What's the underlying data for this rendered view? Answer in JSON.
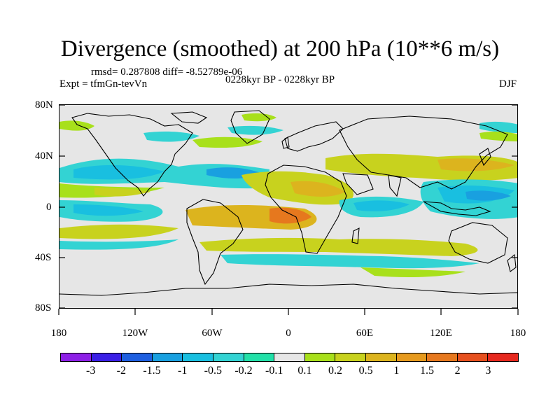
{
  "title": "Divergence (smoothed) at 200 hPa (10**6 m/s)",
  "stats": "rmsd= 0.287808 diff= -8.52789e-06",
  "experiment": "Expt = tfmGn-tevVn",
  "period": "0228kyr BP - 0228kyr BP",
  "season": "DJF",
  "lon_ticks": [
    "180",
    "120W",
    "60W",
    "0",
    "60E",
    "120E",
    "180"
  ],
  "lat_ticks": [
    "80N",
    "40N",
    "0",
    "40S",
    "80S"
  ],
  "colorbar": {
    "colors": [
      "#8d1fe6",
      "#3a1fe6",
      "#1e5fe0",
      "#19a0e0",
      "#19bfe0",
      "#33d3d3",
      "#22e0a8",
      "#e6e6e6",
      "#a8e01b",
      "#c8d21e",
      "#dcb41e",
      "#e69a1e",
      "#e6781e",
      "#e6501e",
      "#e6281e"
    ],
    "labels": [
      "-3",
      "-2",
      "-1.5",
      "-1",
      "-0.5",
      "-0.2",
      "-0.1",
      "0.1",
      "0.2",
      "0.5",
      "1",
      "1.5",
      "2",
      "3"
    ]
  },
  "field_colors": {
    "neg_weak": "#33d3d3",
    "neg_mod": "#19bfe0",
    "neg_strong": "#19a0e0",
    "pos_weak": "#a8e01b",
    "pos_mod": "#c8d21e",
    "pos_strong": "#dcb41e",
    "pos_max": "#e6781e",
    "land_outline": "#000000"
  }
}
